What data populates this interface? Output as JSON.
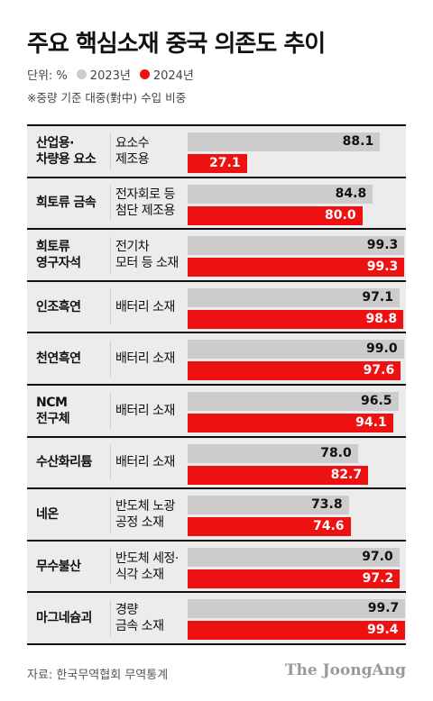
{
  "title": "주요 핵심소재 중국 의존도 추이",
  "legend": {
    "unit_label": "단위: %",
    "series_2023": "2023년",
    "series_2024": "2024년"
  },
  "note": "※중량 기준 대중(對中) 수입 비중",
  "source": "자료: 한국무역협회 무역통계",
  "brand": "The JoongAng",
  "colors": {
    "y2023": "#cccccc",
    "y2024": "#ee1111"
  },
  "chart_data": {
    "type": "bar",
    "orientation": "horizontal",
    "title": "주요 핵심소재 중국 의존도 추이",
    "unit": "%",
    "xlim": [
      0,
      100
    ],
    "categories": [
      "산업용·\n차량용 요소",
      "희토류 금속",
      "희토류\n영구자석",
      "인조흑연",
      "천연흑연",
      "NCM\n전구체",
      "수산화리튬",
      "네온",
      "무수불산",
      "마그네슘괴"
    ],
    "uses": [
      "요소수\n제조용",
      "전자회로 등\n첨단 제조용",
      "전기차\n모터 등 소재",
      "배터리 소재",
      "배터리 소재",
      "배터리 소재",
      "배터리 소재",
      "반도체 노광\n공정 소재",
      "반도체 세정·\n식각 소재",
      "경량\n금속 소재"
    ],
    "series": [
      {
        "name": "2023년",
        "values": [
          88.1,
          84.8,
          99.3,
          97.1,
          99.0,
          96.5,
          78.0,
          73.8,
          97.0,
          99.7
        ]
      },
      {
        "name": "2024년",
        "values": [
          27.1,
          80.0,
          99.3,
          98.8,
          97.6,
          94.1,
          82.7,
          74.6,
          97.2,
          99.4
        ]
      }
    ]
  }
}
